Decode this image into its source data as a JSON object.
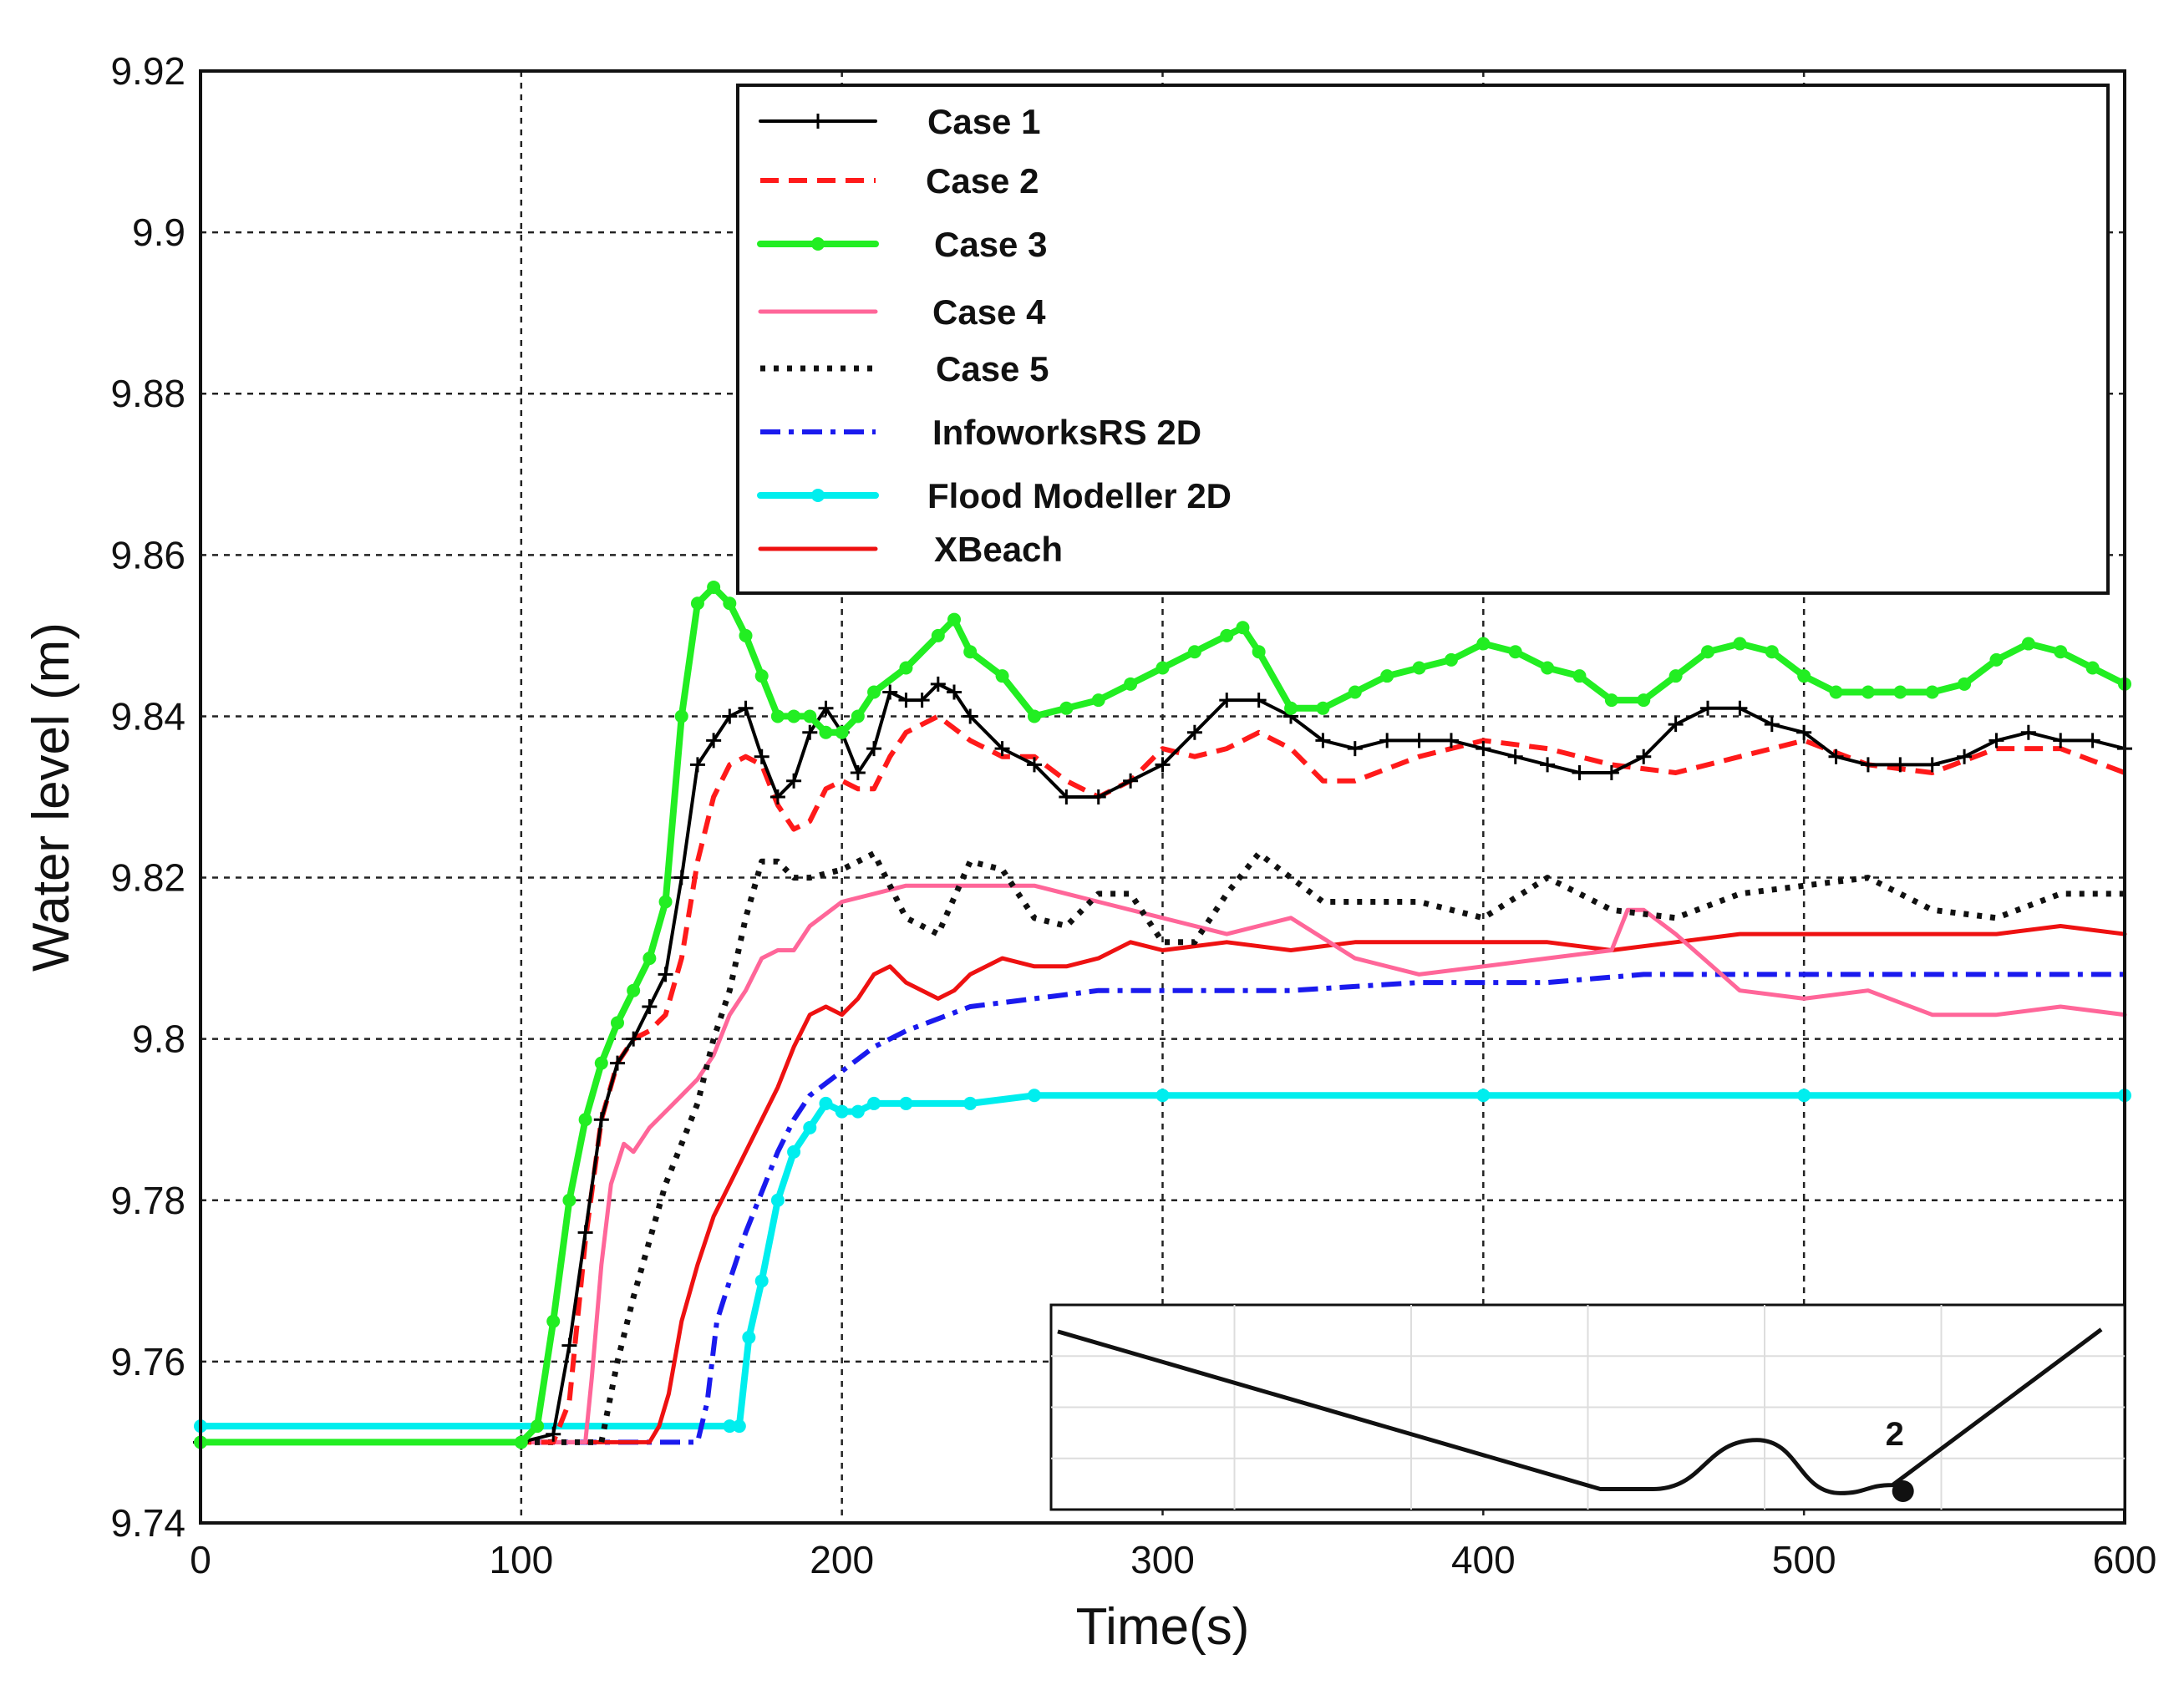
{
  "chart_data": {
    "type": "line",
    "xlabel": "Time(s)",
    "ylabel": "Water level (m)",
    "xlim": [
      0,
      600
    ],
    "ylim": [
      9.74,
      9.92
    ],
    "xticks": [
      "0",
      "100",
      "200",
      "300",
      "400",
      "500",
      "600"
    ],
    "yticks": [
      "9.74",
      "9.76",
      "9.78",
      "9.8",
      "9.82",
      "9.84",
      "9.86",
      "9.88",
      "9.9",
      "9.92"
    ],
    "grid": true,
    "legend_position": "top-right",
    "series": [
      {
        "name": "Case 1",
        "color": "#000000",
        "style": "solid-plus",
        "x": [
          0,
          100,
          110,
          115,
          120,
          125,
          130,
          135,
          140,
          145,
          150,
          155,
          160,
          165,
          170,
          175,
          180,
          185,
          190,
          195,
          200,
          205,
          210,
          215,
          220,
          225,
          230,
          235,
          240,
          250,
          260,
          270,
          280,
          290,
          300,
          310,
          320,
          330,
          340,
          350,
          360,
          370,
          380,
          390,
          400,
          410,
          420,
          430,
          440,
          450,
          460,
          470,
          480,
          490,
          500,
          510,
          520,
          530,
          540,
          550,
          560,
          570,
          580,
          590,
          600
        ],
        "y": [
          9.75,
          9.75,
          9.751,
          9.762,
          9.776,
          9.79,
          9.797,
          9.8,
          9.804,
          9.808,
          9.82,
          9.834,
          9.837,
          9.84,
          9.841,
          9.835,
          9.83,
          9.832,
          9.838,
          9.841,
          9.838,
          9.833,
          9.836,
          9.843,
          9.842,
          9.842,
          9.844,
          9.843,
          9.84,
          9.836,
          9.834,
          9.83,
          9.83,
          9.832,
          9.834,
          9.838,
          9.842,
          9.842,
          9.84,
          9.837,
          9.836,
          9.837,
          9.837,
          9.837,
          9.836,
          9.835,
          9.834,
          9.833,
          9.833,
          9.835,
          9.839,
          9.841,
          9.841,
          9.839,
          9.838,
          9.835,
          9.834,
          9.834,
          9.834,
          9.835,
          9.837,
          9.838,
          9.837,
          9.837,
          9.836
        ]
      },
      {
        "name": "Case 2",
        "color": "#ff1a1a",
        "style": "dashed",
        "x": [
          0,
          110,
          115,
          120,
          125,
          130,
          135,
          140,
          145,
          150,
          155,
          160,
          165,
          170,
          175,
          180,
          185,
          190,
          195,
          200,
          205,
          210,
          215,
          220,
          230,
          240,
          250,
          260,
          270,
          280,
          290,
          300,
          310,
          320,
          330,
          340,
          350,
          360,
          380,
          400,
          420,
          440,
          460,
          480,
          500,
          520,
          540,
          560,
          580,
          600
        ],
        "y": [
          9.75,
          9.75,
          9.755,
          9.775,
          9.79,
          9.797,
          9.8,
          9.801,
          9.803,
          9.81,
          9.822,
          9.83,
          9.834,
          9.835,
          9.834,
          9.829,
          9.826,
          9.827,
          9.831,
          9.832,
          9.831,
          9.831,
          9.835,
          9.838,
          9.84,
          9.837,
          9.835,
          9.835,
          9.832,
          9.83,
          9.832,
          9.836,
          9.835,
          9.836,
          9.838,
          9.836,
          9.832,
          9.832,
          9.835,
          9.837,
          9.836,
          9.834,
          9.833,
          9.835,
          9.837,
          9.834,
          9.833,
          9.836,
          9.836,
          9.833
        ]
      },
      {
        "name": "Case 3",
        "color": "#22ee22",
        "style": "solid-dot",
        "x": [
          0,
          100,
          105,
          110,
          115,
          120,
          125,
          130,
          135,
          140,
          145,
          150,
          155,
          160,
          165,
          170,
          175,
          180,
          185,
          190,
          195,
          200,
          205,
          210,
          220,
          230,
          235,
          240,
          250,
          260,
          270,
          280,
          290,
          300,
          310,
          320,
          325,
          330,
          340,
          350,
          360,
          370,
          380,
          390,
          400,
          410,
          420,
          430,
          440,
          450,
          460,
          470,
          480,
          490,
          500,
          510,
          520,
          530,
          540,
          550,
          560,
          570,
          580,
          590,
          600
        ],
        "y": [
          9.75,
          9.75,
          9.752,
          9.765,
          9.78,
          9.79,
          9.797,
          9.802,
          9.806,
          9.81,
          9.817,
          9.84,
          9.854,
          9.856,
          9.854,
          9.85,
          9.845,
          9.84,
          9.84,
          9.84,
          9.838,
          9.838,
          9.84,
          9.843,
          9.846,
          9.85,
          9.852,
          9.848,
          9.845,
          9.84,
          9.841,
          9.842,
          9.844,
          9.846,
          9.848,
          9.85,
          9.851,
          9.848,
          9.841,
          9.841,
          9.843,
          9.845,
          9.846,
          9.847,
          9.849,
          9.848,
          9.846,
          9.845,
          9.842,
          9.842,
          9.845,
          9.848,
          9.849,
          9.848,
          9.845,
          9.843,
          9.843,
          9.843,
          9.843,
          9.844,
          9.847,
          9.849,
          9.848,
          9.846,
          9.844
        ]
      },
      {
        "name": "Case 4",
        "color": "#ff6699",
        "style": "solid",
        "x": [
          0,
          120,
          122,
          125,
          128,
          132,
          135,
          140,
          145,
          150,
          155,
          160,
          165,
          170,
          175,
          180,
          185,
          190,
          200,
          210,
          220,
          240,
          260,
          280,
          300,
          320,
          340,
          360,
          380,
          400,
          420,
          440,
          445,
          450,
          460,
          480,
          500,
          520,
          540,
          560,
          580,
          600
        ],
        "y": [
          9.75,
          9.75,
          9.758,
          9.772,
          9.782,
          9.787,
          9.786,
          9.789,
          9.791,
          9.793,
          9.795,
          9.798,
          9.803,
          9.806,
          9.81,
          9.811,
          9.811,
          9.814,
          9.817,
          9.818,
          9.819,
          9.819,
          9.819,
          9.817,
          9.815,
          9.813,
          9.815,
          9.81,
          9.808,
          9.809,
          9.81,
          9.811,
          9.816,
          9.816,
          9.813,
          9.806,
          9.805,
          9.806,
          9.803,
          9.803,
          9.804,
          9.803
        ]
      },
      {
        "name": "Case 5",
        "color": "#111111",
        "style": "dotted",
        "x": [
          0,
          125,
          130,
          135,
          140,
          145,
          150,
          155,
          160,
          165,
          170,
          175,
          180,
          185,
          190,
          200,
          210,
          220,
          230,
          240,
          250,
          260,
          270,
          280,
          290,
          300,
          310,
          320,
          330,
          340,
          350,
          360,
          380,
          400,
          420,
          440,
          460,
          480,
          500,
          520,
          540,
          560,
          580,
          600
        ],
        "y": [
          9.75,
          9.75,
          9.76,
          9.768,
          9.775,
          9.782,
          9.787,
          9.792,
          9.8,
          9.806,
          9.815,
          9.822,
          9.822,
          9.82,
          9.82,
          9.821,
          9.823,
          9.815,
          9.813,
          9.822,
          9.821,
          9.815,
          9.814,
          9.818,
          9.818,
          9.812,
          9.812,
          9.818,
          9.823,
          9.82,
          9.817,
          9.817,
          9.817,
          9.815,
          9.82,
          9.816,
          9.815,
          9.818,
          9.819,
          9.82,
          9.816,
          9.815,
          9.818,
          9.818
        ]
      },
      {
        "name": "InfoworksRS 2D",
        "color": "#1a1aee",
        "style": "dashdot",
        "x": [
          0,
          155,
          158,
          161,
          165,
          170,
          175,
          180,
          185,
          190,
          200,
          210,
          220,
          240,
          260,
          280,
          300,
          340,
          380,
          420,
          450,
          500,
          550,
          600
        ],
        "y": [
          9.75,
          9.75,
          9.755,
          9.765,
          9.77,
          9.776,
          9.781,
          9.786,
          9.79,
          9.793,
          9.796,
          9.799,
          9.801,
          9.804,
          9.805,
          9.806,
          9.806,
          9.806,
          9.807,
          9.807,
          9.808,
          9.808,
          9.808,
          9.808
        ]
      },
      {
        "name": "Flood Modeller 2D",
        "color": "#00eeee",
        "style": "solid-dot",
        "x": [
          0,
          165,
          168,
          171,
          175,
          180,
          185,
          190,
          195,
          200,
          205,
          210,
          220,
          240,
          260,
          300,
          400,
          500,
          600
        ],
        "y": [
          9.752,
          9.752,
          9.752,
          9.763,
          9.77,
          9.78,
          9.786,
          9.789,
          9.792,
          9.791,
          9.791,
          9.792,
          9.792,
          9.792,
          9.793,
          9.793,
          9.793,
          9.793,
          9.793
        ]
      },
      {
        "name": "XBeach",
        "color": "#ee1111",
        "style": "solid",
        "x": [
          0,
          140,
          143,
          146,
          150,
          155,
          160,
          165,
          170,
          180,
          185,
          190,
          195,
          200,
          205,
          210,
          215,
          220,
          230,
          235,
          240,
          250,
          260,
          270,
          280,
          290,
          300,
          320,
          340,
          360,
          380,
          400,
          420,
          440,
          460,
          480,
          500,
          520,
          540,
          560,
          580,
          600
        ],
        "y": [
          9.75,
          9.75,
          9.752,
          9.756,
          9.765,
          9.772,
          9.778,
          9.782,
          9.786,
          9.794,
          9.799,
          9.803,
          9.804,
          9.803,
          9.805,
          9.808,
          9.809,
          9.807,
          9.805,
          9.806,
          9.808,
          9.81,
          9.809,
          9.809,
          9.81,
          9.812,
          9.811,
          9.812,
          9.811,
          9.812,
          9.812,
          9.812,
          9.812,
          9.811,
          9.812,
          9.813,
          9.813,
          9.813,
          9.813,
          9.813,
          9.814,
          9.813
        ]
      }
    ],
    "inset": {
      "label": "2",
      "profile_x": [
        0,
        0.52,
        0.57,
        0.67,
        0.75,
        0.8,
        1.0
      ],
      "profile_y": [
        0.87,
        0.1,
        0.1,
        0.34,
        0.08,
        0.12,
        0.88
      ],
      "marker_x": 0.81
    }
  }
}
